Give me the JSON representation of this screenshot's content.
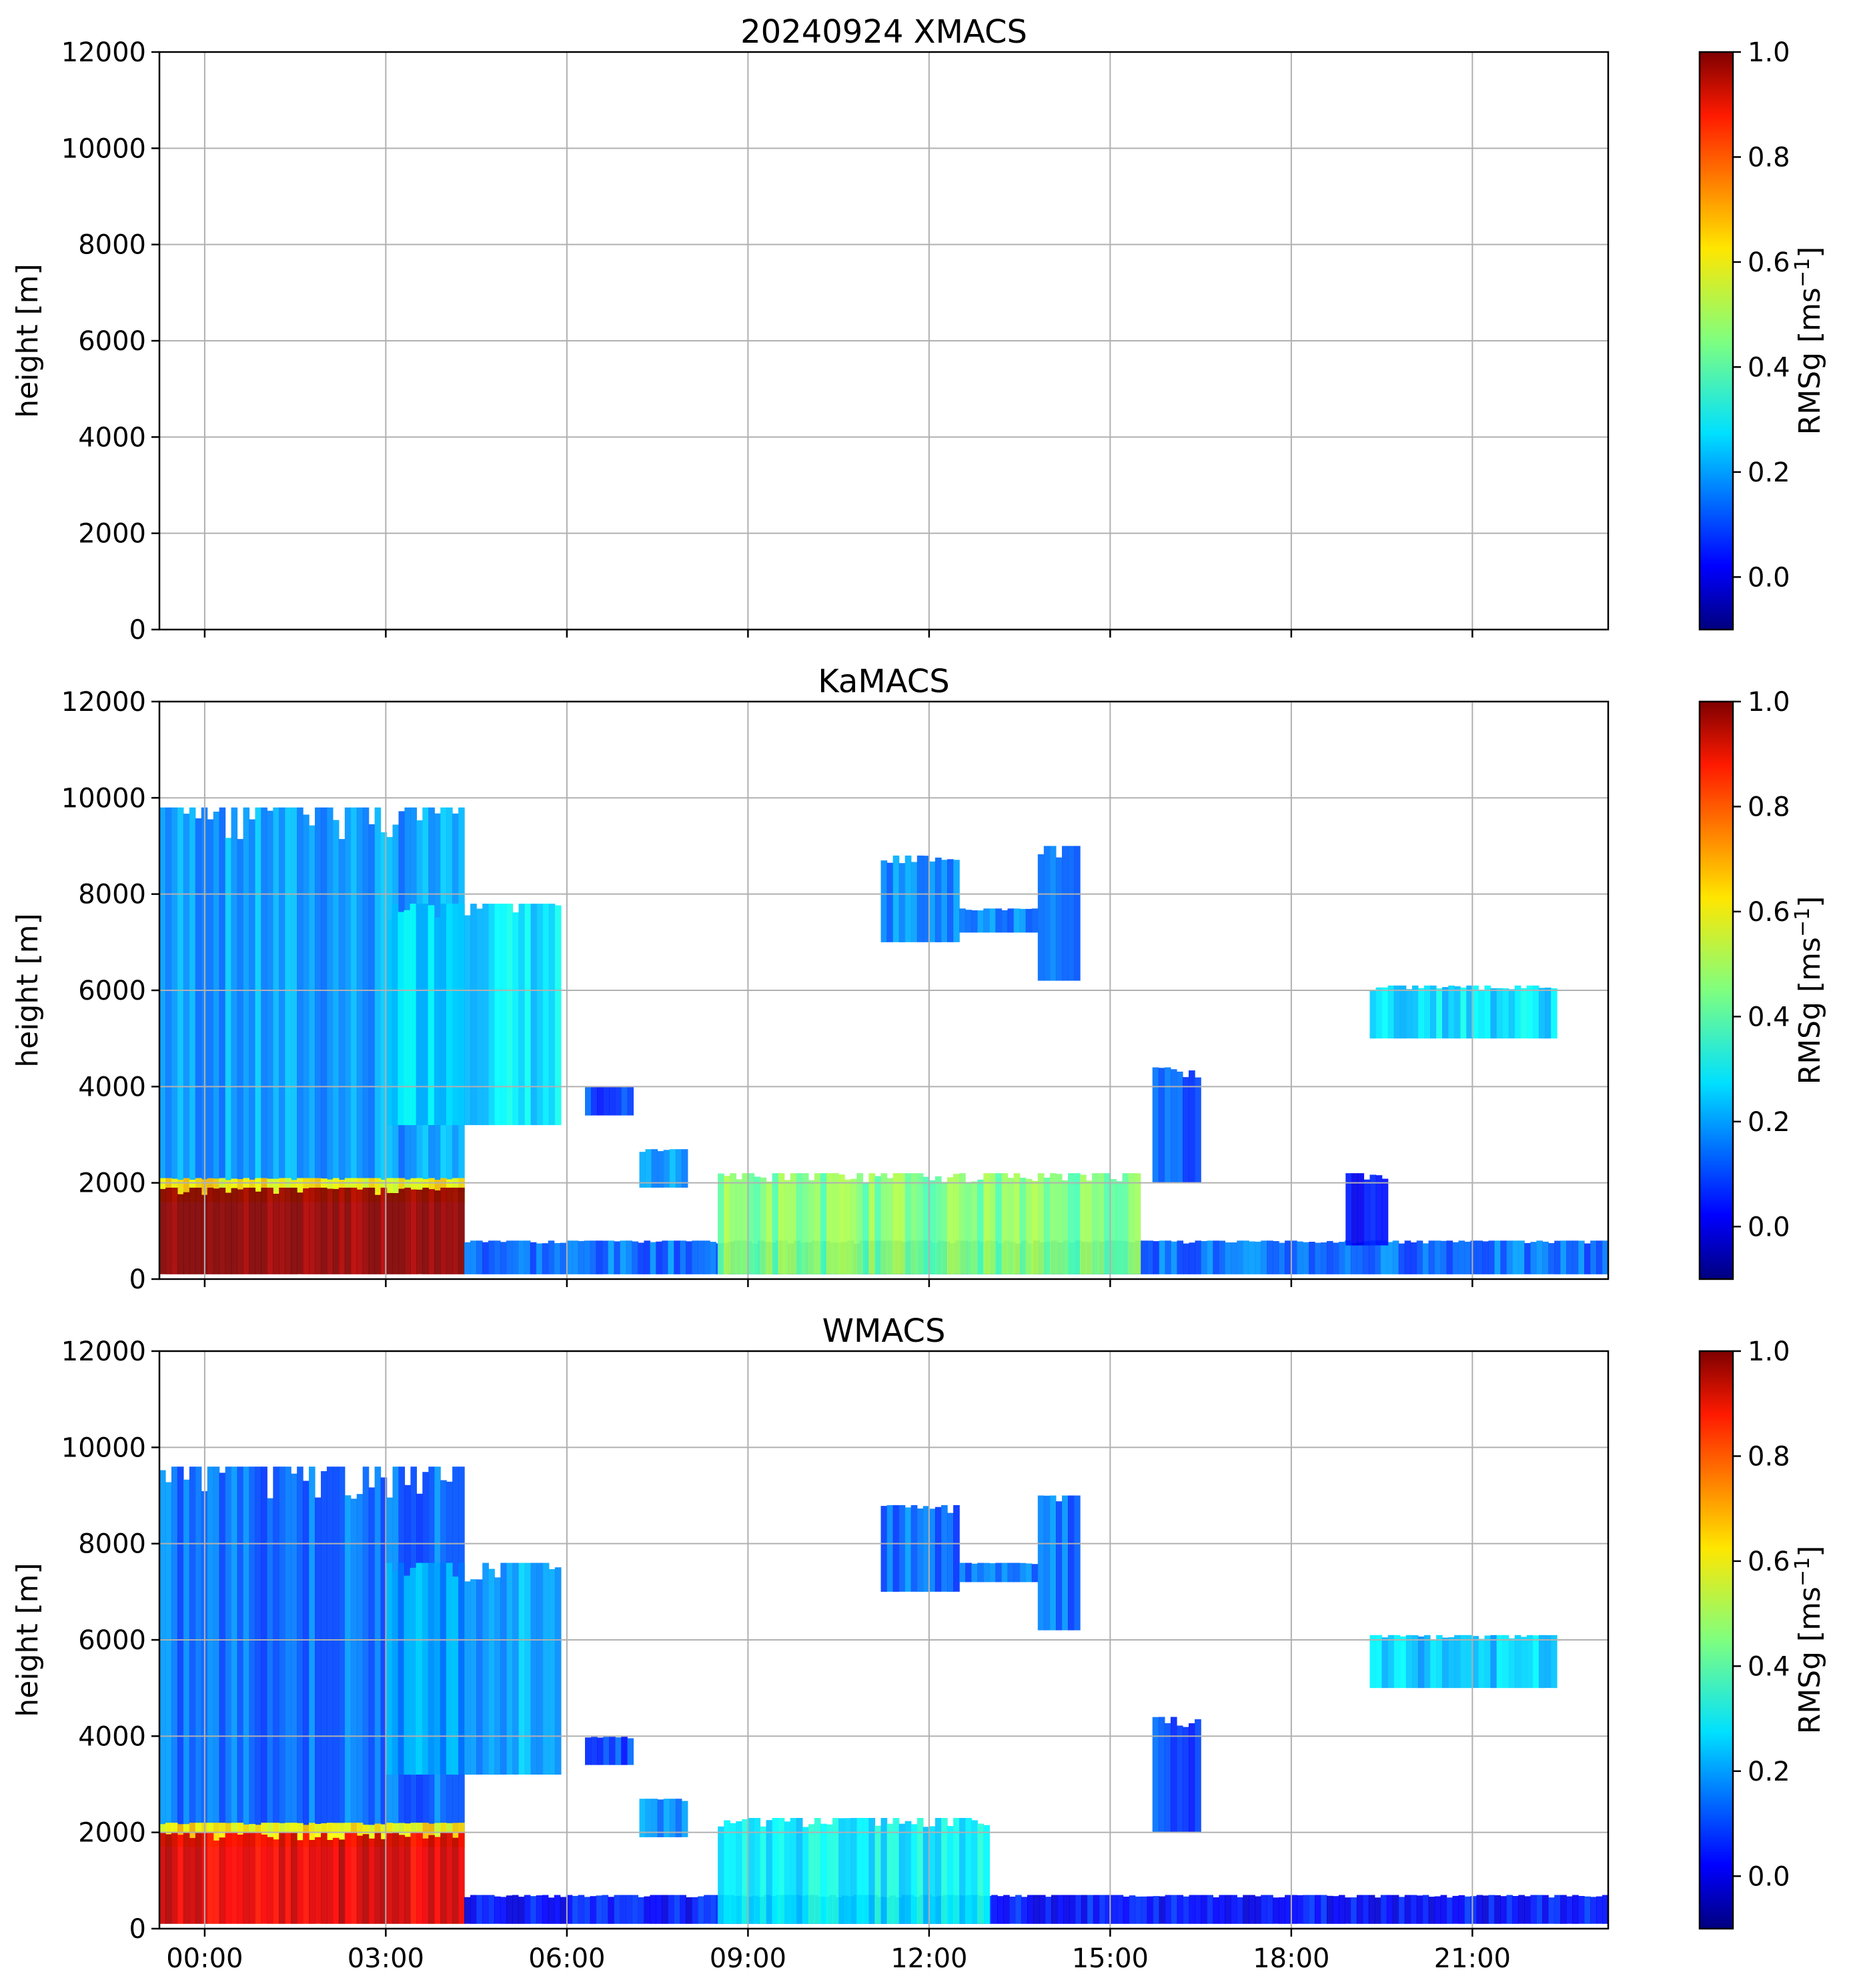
{
  "chart_data": [
    {
      "type": "heatmap",
      "title": "20240924 XMACS",
      "ylabel": "height [m]",
      "ylim": [
        0,
        12000
      ],
      "yticks": [
        0,
        2000,
        4000,
        6000,
        8000,
        10000,
        12000
      ],
      "xlim_hours": [
        -0.75,
        23.25
      ],
      "xticks_hours": [
        0,
        3,
        6,
        9,
        12,
        15,
        18,
        21
      ],
      "xticklabels": [],
      "grid": true,
      "colorbar": {
        "label": "RMSg [ms",
        "label_sup": "−1",
        "label_end": "]",
        "range": [
          -0.1,
          1.0
        ],
        "ticks": [
          0.0,
          0.2,
          0.4,
          0.6,
          0.8,
          1.0
        ],
        "cmap": "jet"
      },
      "features": []
    },
    {
      "type": "heatmap",
      "title": "KaMACS",
      "ylabel": "height [m]",
      "ylim": [
        0,
        12000
      ],
      "yticks": [
        0,
        2000,
        4000,
        6000,
        8000,
        10000,
        12000
      ],
      "xlim_hours": [
        -0.75,
        23.25
      ],
      "xticks_hours": [
        0,
        3,
        6,
        9,
        12,
        15,
        18,
        21
      ],
      "xticklabels": [],
      "grid": true,
      "colorbar": {
        "label": "RMSg [ms",
        "label_sup": "−1",
        "label_end": "]",
        "range": [
          -0.1,
          1.0
        ],
        "ticks": [
          0.0,
          0.2,
          0.4,
          0.6,
          0.8,
          1.0
        ],
        "cmap": "jet"
      },
      "features": [
        {
          "name": "deep-cloud",
          "t_start": -0.75,
          "t_end": 4.3,
          "h_top": 9800,
          "h_bottom": 1800,
          "rmsg": 0.2
        },
        {
          "name": "deep-cloud-edge",
          "t_start": 3.0,
          "t_end": 5.9,
          "h_top": 7800,
          "h_bottom": 3200,
          "rmsg": 0.28
        },
        {
          "name": "melting-layer",
          "t_start": -0.75,
          "t_end": 4.3,
          "h_top": 2100,
          "h_bottom": 1600,
          "rmsg": 0.6
        },
        {
          "name": "rain",
          "t_start": -0.75,
          "t_end": 4.3,
          "h_top": 1900,
          "h_bottom": 100,
          "rmsg": 1.0
        },
        {
          "name": "midlevel-patch",
          "t_start": 6.3,
          "t_end": 7.1,
          "h_top": 4000,
          "h_bottom": 3400,
          "rmsg": 0.1
        },
        {
          "name": "low-fallstreak",
          "t_start": 7.2,
          "t_end": 8.0,
          "h_top": 2700,
          "h_bottom": 1900,
          "rmsg": 0.2
        },
        {
          "name": "boundary-layer",
          "t_start": 4.3,
          "t_end": 23.25,
          "h_top": 800,
          "h_bottom": 100,
          "rmsg": 0.15
        },
        {
          "name": "convective-plumes",
          "t_start": 8.5,
          "t_end": 15.5,
          "h_top": 2200,
          "h_bottom": 100,
          "rmsg": 0.45
        },
        {
          "name": "cirrus-1",
          "t_start": 11.2,
          "t_end": 12.5,
          "h_top": 8800,
          "h_bottom": 7000,
          "rmsg": 0.18
        },
        {
          "name": "cirrus-1-tail",
          "t_start": 12.5,
          "t_end": 13.8,
          "h_top": 7700,
          "h_bottom": 7200,
          "rmsg": 0.18
        },
        {
          "name": "cirrus-2",
          "t_start": 13.8,
          "t_end": 14.5,
          "h_top": 9000,
          "h_bottom": 6200,
          "rmsg": 0.18
        },
        {
          "name": "fallstreak-16h",
          "t_start": 15.7,
          "t_end": 16.5,
          "h_top": 4400,
          "h_bottom": 2000,
          "rmsg": 0.12
        },
        {
          "name": "altocumulus",
          "t_start": 19.3,
          "t_end": 22.4,
          "h_top": 6100,
          "h_bottom": 5000,
          "rmsg": 0.28
        },
        {
          "name": "low-plume-19h",
          "t_start": 18.9,
          "t_end": 19.6,
          "h_top": 2200,
          "h_bottom": 700,
          "rmsg": 0.05
        }
      ]
    },
    {
      "type": "heatmap",
      "title": "WMACS",
      "ylabel": "height [m]",
      "ylim": [
        0,
        12000
      ],
      "yticks": [
        0,
        2000,
        4000,
        6000,
        8000,
        10000,
        12000
      ],
      "xlim_hours": [
        -0.75,
        23.25
      ],
      "xticks_hours": [
        0,
        3,
        6,
        9,
        12,
        15,
        18,
        21
      ],
      "xticklabels": [
        "00:00",
        "03:00",
        "06:00",
        "09:00",
        "12:00",
        "15:00",
        "18:00",
        "21:00"
      ],
      "grid": true,
      "colorbar": {
        "label": "RMSg [ms",
        "label_sup": "−1",
        "label_end": "]",
        "range": [
          -0.1,
          1.0
        ],
        "ticks": [
          0.0,
          0.2,
          0.4,
          0.6,
          0.8,
          1.0
        ],
        "cmap": "jet"
      },
      "features": [
        {
          "name": "deep-cloud",
          "t_start": -0.75,
          "t_end": 4.3,
          "h_top": 9600,
          "h_bottom": 2000,
          "rmsg": 0.15
        },
        {
          "name": "deep-cloud-edge",
          "t_start": 3.0,
          "t_end": 5.9,
          "h_top": 7600,
          "h_bottom": 3200,
          "rmsg": 0.22
        },
        {
          "name": "melting-layer",
          "t_start": -0.75,
          "t_end": 4.3,
          "h_top": 2200,
          "h_bottom": 1700,
          "rmsg": 0.6
        },
        {
          "name": "rain",
          "t_start": -0.75,
          "t_end": 4.3,
          "h_top": 2000,
          "h_bottom": 100,
          "rmsg": 0.9
        },
        {
          "name": "midlevel-patch",
          "t_start": 6.3,
          "t_end": 7.1,
          "h_top": 4000,
          "h_bottom": 3400,
          "rmsg": 0.1
        },
        {
          "name": "low-fallstreak",
          "t_start": 7.2,
          "t_end": 8.0,
          "h_top": 2700,
          "h_bottom": 1900,
          "rmsg": 0.2
        },
        {
          "name": "boundary-layer",
          "t_start": 4.3,
          "t_end": 23.25,
          "h_top": 700,
          "h_bottom": 100,
          "rmsg": 0.05
        },
        {
          "name": "convective-plumes",
          "t_start": 8.5,
          "t_end": 13.0,
          "h_top": 2300,
          "h_bottom": 100,
          "rmsg": 0.3
        },
        {
          "name": "cirrus-1",
          "t_start": 11.2,
          "t_end": 12.5,
          "h_top": 8800,
          "h_bottom": 7000,
          "rmsg": 0.15
        },
        {
          "name": "cirrus-1-tail",
          "t_start": 12.5,
          "t_end": 13.8,
          "h_top": 7600,
          "h_bottom": 7200,
          "rmsg": 0.15
        },
        {
          "name": "cirrus-2",
          "t_start": 13.8,
          "t_end": 14.5,
          "h_top": 9000,
          "h_bottom": 6200,
          "rmsg": 0.15
        },
        {
          "name": "fallstreak-16h",
          "t_start": 15.7,
          "t_end": 16.5,
          "h_top": 4400,
          "h_bottom": 2000,
          "rmsg": 0.1
        },
        {
          "name": "altocumulus",
          "t_start": 19.3,
          "t_end": 22.4,
          "h_top": 6100,
          "h_bottom": 5000,
          "rmsg": 0.25
        }
      ]
    }
  ]
}
